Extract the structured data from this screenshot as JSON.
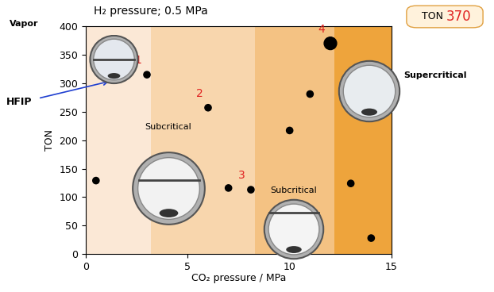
{
  "chart_data": {
    "type": "scatter",
    "title": "H₂ pressure; 0.5 MPa",
    "x_label": "CO₂ pressure / MPa",
    "y_label": "TON",
    "x": [
      0.5,
      3.0,
      6.0,
      7.0,
      8.1,
      10.0,
      11.0,
      12.0,
      13.0,
      14.0
    ],
    "values": [
      129,
      315,
      257,
      116,
      113,
      217,
      281,
      370,
      124,
      28
    ],
    "point_labels": [
      null,
      "1",
      "2",
      null,
      "3",
      null,
      null,
      "4",
      null,
      null
    ],
    "color": "#000000",
    "xlim": [
      0,
      15
    ],
    "xticks": [
      0,
      5,
      10,
      15
    ],
    "ylim": [
      0,
      400
    ],
    "yticks": [
      0,
      50,
      100,
      150,
      200,
      250,
      300,
      350,
      400
    ],
    "regions": [
      {
        "name": "Vapor",
        "x": [
          0,
          3.2
        ],
        "color": "#fbe8d6"
      },
      {
        "name": "Subcritical",
        "x": [
          3.2,
          8.3
        ],
        "color": "#f8d6ad"
      },
      {
        "name": "Subcritical",
        "x": [
          8.3,
          12.2
        ],
        "color": "#f4c283"
      },
      {
        "name": "Supercritical",
        "x": [
          12.2,
          15
        ],
        "color": "#eea43c"
      }
    ],
    "annotations": [
      {
        "text": "HFIP"
      }
    ],
    "callout": {
      "label": "TON",
      "value": 370
    }
  }
}
